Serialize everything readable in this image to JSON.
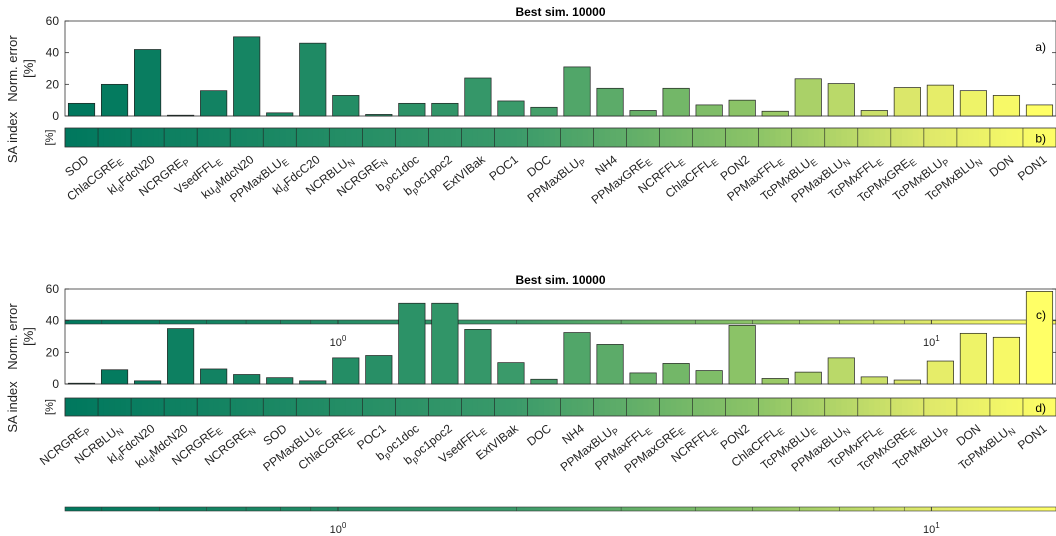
{
  "chart_data": [
    {
      "type": "bar",
      "title": "Best sim. 10000",
      "panel_label": "a)",
      "index_panel_label": "b)",
      "ylabel": "Norm. error",
      "yunit": "[%]",
      "index_ylabel": "SA index",
      "index_yunit": "[%]",
      "ylim": [
        0,
        60
      ],
      "yticks": [
        "0",
        "20",
        "40",
        "60"
      ],
      "grid": false,
      "categories": [
        "SOD",
        "ChlaCGRE_E",
        "kl_dFdcN20",
        "NCRGRE_P",
        "VsedFFL_E",
        "ku_dMdcN20",
        "PPMaxBLU_E",
        "kl_dFdcC20",
        "NCRBLU_N",
        "NCRGRE_N",
        "b_poc1doc",
        "b_poc1poc2",
        "ExtVIBak",
        "POC1",
        "DOC",
        "PPMaxBLU_P",
        "NH4",
        "PPMaxGRE_E",
        "NCRFFL_E",
        "ChlaCFFL_E",
        "PON2",
        "PPMaxFFL_E",
        "TcPMxBLU_E",
        "PPMaxBLU_N",
        "TcPMxFFL_E",
        "TcPMxGRE_E",
        "TcPMxBLU_P",
        "TcPMxBLU_N",
        "DON",
        "PON1"
      ],
      "values": [
        8,
        20,
        42,
        0.5,
        16,
        50,
        2,
        46,
        13,
        1,
        8,
        8,
        24,
        9.5,
        5.5,
        31,
        17.5,
        3.5,
        17.5,
        7,
        10,
        3,
        23.5,
        20.5,
        3.5,
        18,
        19.5,
        16,
        13,
        7
      ],
      "colorbar": {
        "scale": "log",
        "tick_labels": [
          "10^0",
          "10^1"
        ],
        "tick_values": [
          1,
          10
        ]
      }
    },
    {
      "type": "bar",
      "title": "Best sim. 10000",
      "panel_label": "c)",
      "index_panel_label": "d)",
      "ylabel": "Norm. error",
      "yunit": "[%]",
      "index_ylabel": "SA index",
      "index_yunit": "[%]",
      "ylim": [
        0,
        60
      ],
      "yticks": [
        "0",
        "20",
        "40",
        "60"
      ],
      "grid": false,
      "categories": [
        "NCRGRE_P",
        "NCRBLU_N",
        "kl_dFdcN20",
        "ku_dMdcN20",
        "NCRGRE_E",
        "NCRGRE_N",
        "SOD",
        "PPMaxBLU_E",
        "ChlaCGRE_E",
        "POC1",
        "b_poc1doc",
        "b_poc1poc2",
        "VsedFFL_E",
        "ExtVIBak",
        "DOC",
        "NH4",
        "PPMaxBLU_P",
        "PPMaxFFL_E",
        "PPMaxGRE_E",
        "NCRFFL_E",
        "PON2",
        "ChlaCFFL_E",
        "TcPMxBLU_E",
        "PPMaxBLU_N",
        "TcPMxFFL_E",
        "TcPMxGRE_E",
        "TcPMxBLU_P",
        "DON",
        "TcPMxBLU_N",
        "PON1"
      ],
      "values": [
        0.5,
        9,
        2,
        35,
        9.5,
        6,
        4,
        2,
        16.5,
        18,
        51,
        51,
        34.5,
        13.5,
        3,
        32.5,
        25,
        7,
        13,
        8.5,
        37,
        3.5,
        7.5,
        16.5,
        4.5,
        2.5,
        14.5,
        32,
        29.5,
        58.5
      ],
      "colorbar": {
        "scale": "log",
        "tick_labels": [
          "10^0",
          "10^1"
        ],
        "tick_values": [
          1,
          10
        ]
      }
    }
  ]
}
